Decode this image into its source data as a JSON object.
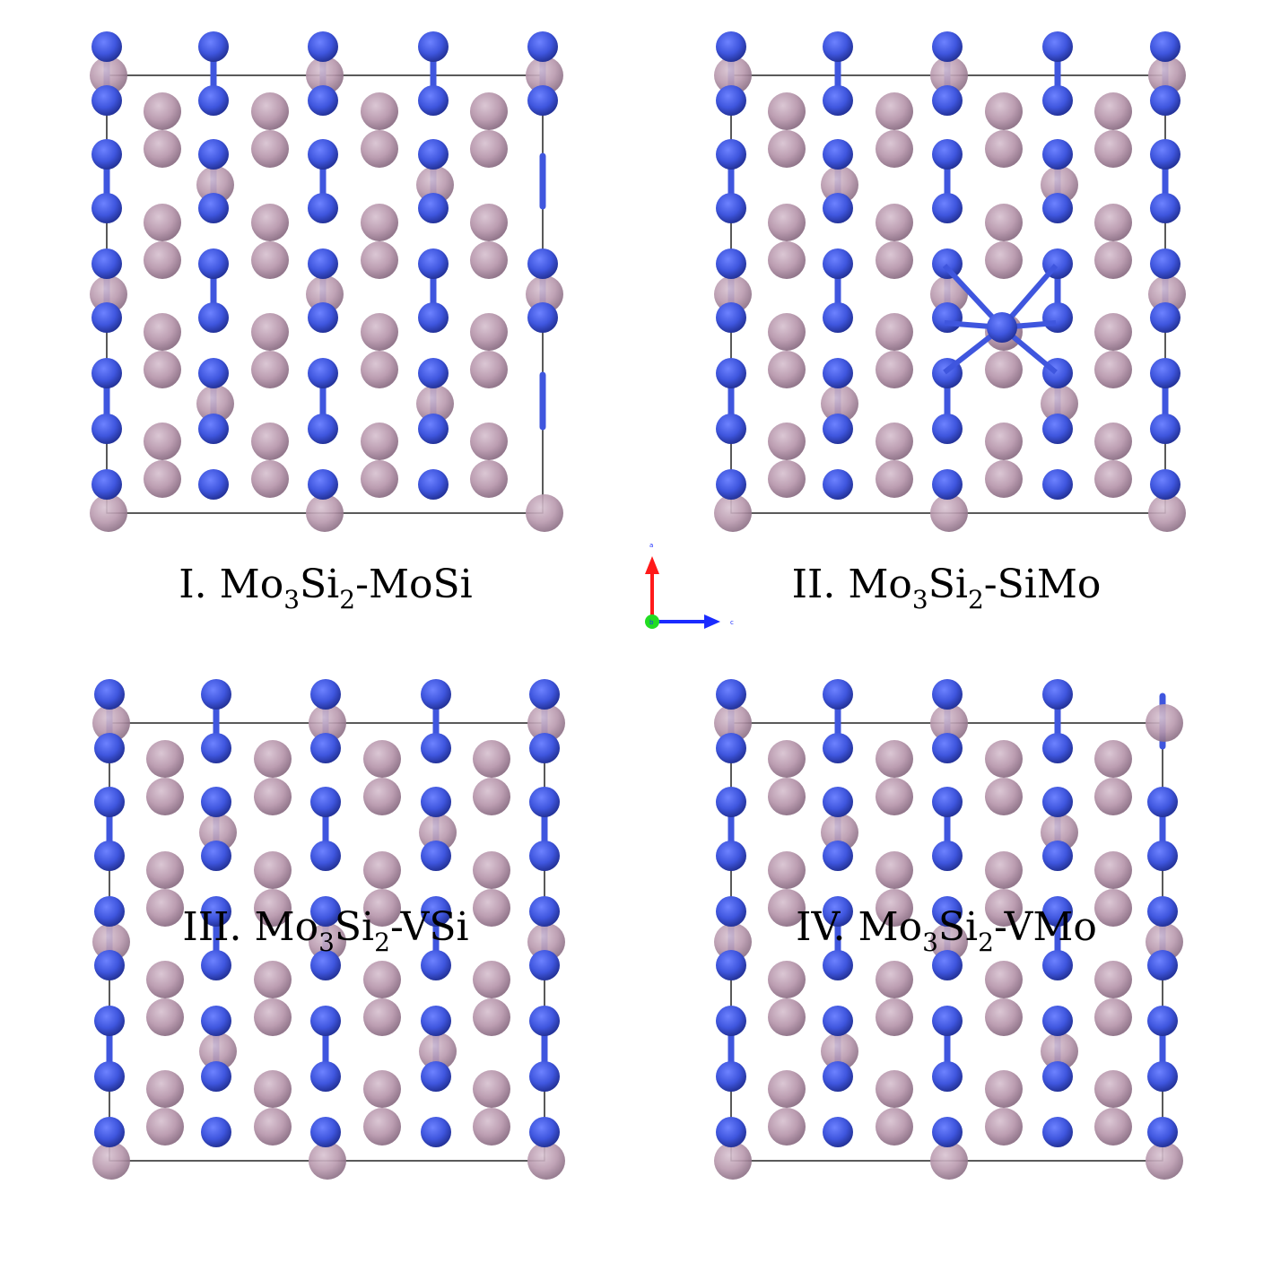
{
  "colors": {
    "mo_atom": "#3f56de",
    "si_atom": "#b898ad",
    "bond": "#3f56de",
    "cell": "#000000",
    "axis_a": "#ff1a1a",
    "axis_b": "#22dd22",
    "axis_c": "#1a2bff"
  },
  "axes": {
    "a_label": "a",
    "b_label": "b",
    "c_label": "c"
  },
  "panels": [
    {
      "id": "I",
      "caption": {
        "prefix": "I. Mo",
        "sub1": "3",
        "mid": "Si",
        "sub2": "2",
        "suffix": "-MoSi"
      },
      "defect": "none"
    },
    {
      "id": "II",
      "caption": {
        "prefix": "II. Mo",
        "sub1": "3",
        "mid": "Si",
        "sub2": "2",
        "suffix": "-SiMo"
      },
      "defect": "Si on Mo site (center)"
    },
    {
      "id": "III",
      "caption": {
        "prefix": "III. Mo",
        "sub1": "3",
        "mid": "Si",
        "sub2": "2",
        "suffix": "-VSi"
      },
      "defect": "Si vacancy"
    },
    {
      "id": "IV",
      "caption": {
        "prefix": "IV. Mo",
        "sub1": "3",
        "mid": "Si",
        "sub2": "2",
        "suffix": "-VMo"
      },
      "defect": "Mo vacancy"
    }
  ]
}
